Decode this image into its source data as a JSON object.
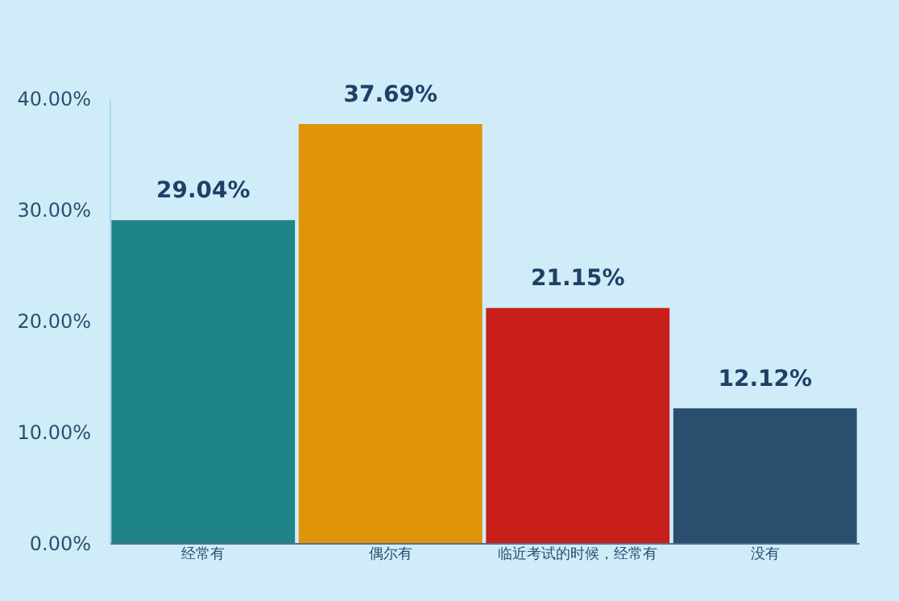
{
  "chart_data": {
    "type": "bar",
    "categories": [
      "经常有",
      "偶尔有",
      "临近考试的时候，经常有",
      "没有"
    ],
    "values": [
      29.04,
      37.69,
      21.15,
      12.12
    ],
    "colors": [
      "#1e8488",
      "#e09408",
      "#c91f1a",
      "#2a4f6e"
    ],
    "value_labels": [
      "29.04%",
      "37.69%",
      "21.15%",
      "12.12%"
    ],
    "ylim": [
      0,
      40
    ],
    "yticks": [
      {
        "value": 0,
        "label": "0.00%"
      },
      {
        "value": 10,
        "label": "10.00%"
      },
      {
        "value": 20,
        "label": "20.00%"
      },
      {
        "value": 30,
        "label": "30.00%"
      },
      {
        "value": 40,
        "label": "40.00%"
      }
    ]
  }
}
